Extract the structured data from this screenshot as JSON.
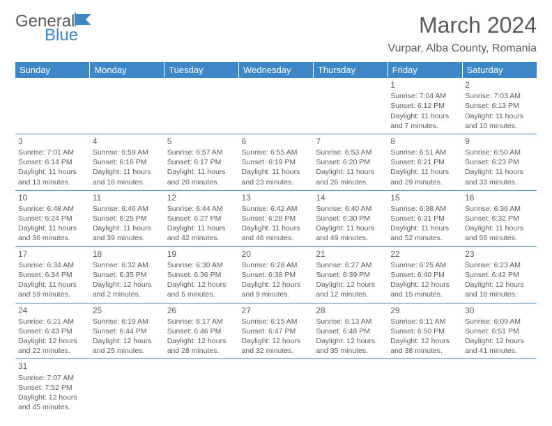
{
  "logo": {
    "word1": "General",
    "word2": "Blue"
  },
  "title": "March 2024",
  "location": "Vurpar, Alba County, Romania",
  "colors": {
    "header_bg": "#3d87c7",
    "text": "#5a5a5a",
    "border": "#3d87c7"
  },
  "day_headers": [
    "Sunday",
    "Monday",
    "Tuesday",
    "Wednesday",
    "Thursday",
    "Friday",
    "Saturday"
  ],
  "weeks": [
    [
      null,
      null,
      null,
      null,
      null,
      {
        "n": "1",
        "sr": "Sunrise: 7:04 AM",
        "ss": "Sunset: 6:12 PM",
        "dl1": "Daylight: 11 hours",
        "dl2": "and 7 minutes."
      },
      {
        "n": "2",
        "sr": "Sunrise: 7:03 AM",
        "ss": "Sunset: 6:13 PM",
        "dl1": "Daylight: 11 hours",
        "dl2": "and 10 minutes."
      }
    ],
    [
      {
        "n": "3",
        "sr": "Sunrise: 7:01 AM",
        "ss": "Sunset: 6:14 PM",
        "dl1": "Daylight: 11 hours",
        "dl2": "and 13 minutes."
      },
      {
        "n": "4",
        "sr": "Sunrise: 6:59 AM",
        "ss": "Sunset: 6:16 PM",
        "dl1": "Daylight: 11 hours",
        "dl2": "and 16 minutes."
      },
      {
        "n": "5",
        "sr": "Sunrise: 6:57 AM",
        "ss": "Sunset: 6:17 PM",
        "dl1": "Daylight: 11 hours",
        "dl2": "and 20 minutes."
      },
      {
        "n": "6",
        "sr": "Sunrise: 6:55 AM",
        "ss": "Sunset: 6:19 PM",
        "dl1": "Daylight: 11 hours",
        "dl2": "and 23 minutes."
      },
      {
        "n": "7",
        "sr": "Sunrise: 6:53 AM",
        "ss": "Sunset: 6:20 PM",
        "dl1": "Daylight: 11 hours",
        "dl2": "and 26 minutes."
      },
      {
        "n": "8",
        "sr": "Sunrise: 6:51 AM",
        "ss": "Sunset: 6:21 PM",
        "dl1": "Daylight: 11 hours",
        "dl2": "and 29 minutes."
      },
      {
        "n": "9",
        "sr": "Sunrise: 6:50 AM",
        "ss": "Sunset: 6:23 PM",
        "dl1": "Daylight: 11 hours",
        "dl2": "and 33 minutes."
      }
    ],
    [
      {
        "n": "10",
        "sr": "Sunrise: 6:48 AM",
        "ss": "Sunset: 6:24 PM",
        "dl1": "Daylight: 11 hours",
        "dl2": "and 36 minutes."
      },
      {
        "n": "11",
        "sr": "Sunrise: 6:46 AM",
        "ss": "Sunset: 6:25 PM",
        "dl1": "Daylight: 11 hours",
        "dl2": "and 39 minutes."
      },
      {
        "n": "12",
        "sr": "Sunrise: 6:44 AM",
        "ss": "Sunset: 6:27 PM",
        "dl1": "Daylight: 11 hours",
        "dl2": "and 42 minutes."
      },
      {
        "n": "13",
        "sr": "Sunrise: 6:42 AM",
        "ss": "Sunset: 6:28 PM",
        "dl1": "Daylight: 11 hours",
        "dl2": "and 46 minutes."
      },
      {
        "n": "14",
        "sr": "Sunrise: 6:40 AM",
        "ss": "Sunset: 6:30 PM",
        "dl1": "Daylight: 11 hours",
        "dl2": "and 49 minutes."
      },
      {
        "n": "15",
        "sr": "Sunrise: 6:38 AM",
        "ss": "Sunset: 6:31 PM",
        "dl1": "Daylight: 11 hours",
        "dl2": "and 52 minutes."
      },
      {
        "n": "16",
        "sr": "Sunrise: 6:36 AM",
        "ss": "Sunset: 6:32 PM",
        "dl1": "Daylight: 11 hours",
        "dl2": "and 56 minutes."
      }
    ],
    [
      {
        "n": "17",
        "sr": "Sunrise: 6:34 AM",
        "ss": "Sunset: 6:34 PM",
        "dl1": "Daylight: 11 hours",
        "dl2": "and 59 minutes."
      },
      {
        "n": "18",
        "sr": "Sunrise: 6:32 AM",
        "ss": "Sunset: 6:35 PM",
        "dl1": "Daylight: 12 hours",
        "dl2": "and 2 minutes."
      },
      {
        "n": "19",
        "sr": "Sunrise: 6:30 AM",
        "ss": "Sunset: 6:36 PM",
        "dl1": "Daylight: 12 hours",
        "dl2": "and 5 minutes."
      },
      {
        "n": "20",
        "sr": "Sunrise: 6:28 AM",
        "ss": "Sunset: 6:38 PM",
        "dl1": "Daylight: 12 hours",
        "dl2": "and 9 minutes."
      },
      {
        "n": "21",
        "sr": "Sunrise: 6:27 AM",
        "ss": "Sunset: 6:39 PM",
        "dl1": "Daylight: 12 hours",
        "dl2": "and 12 minutes."
      },
      {
        "n": "22",
        "sr": "Sunrise: 6:25 AM",
        "ss": "Sunset: 6:40 PM",
        "dl1": "Daylight: 12 hours",
        "dl2": "and 15 minutes."
      },
      {
        "n": "23",
        "sr": "Sunrise: 6:23 AM",
        "ss": "Sunset: 6:42 PM",
        "dl1": "Daylight: 12 hours",
        "dl2": "and 18 minutes."
      }
    ],
    [
      {
        "n": "24",
        "sr": "Sunrise: 6:21 AM",
        "ss": "Sunset: 6:43 PM",
        "dl1": "Daylight: 12 hours",
        "dl2": "and 22 minutes."
      },
      {
        "n": "25",
        "sr": "Sunrise: 6:19 AM",
        "ss": "Sunset: 6:44 PM",
        "dl1": "Daylight: 12 hours",
        "dl2": "and 25 minutes."
      },
      {
        "n": "26",
        "sr": "Sunrise: 6:17 AM",
        "ss": "Sunset: 6:46 PM",
        "dl1": "Daylight: 12 hours",
        "dl2": "and 28 minutes."
      },
      {
        "n": "27",
        "sr": "Sunrise: 6:15 AM",
        "ss": "Sunset: 6:47 PM",
        "dl1": "Daylight: 12 hours",
        "dl2": "and 32 minutes."
      },
      {
        "n": "28",
        "sr": "Sunrise: 6:13 AM",
        "ss": "Sunset: 6:48 PM",
        "dl1": "Daylight: 12 hours",
        "dl2": "and 35 minutes."
      },
      {
        "n": "29",
        "sr": "Sunrise: 6:11 AM",
        "ss": "Sunset: 6:50 PM",
        "dl1": "Daylight: 12 hours",
        "dl2": "and 38 minutes."
      },
      {
        "n": "30",
        "sr": "Sunrise: 6:09 AM",
        "ss": "Sunset: 6:51 PM",
        "dl1": "Daylight: 12 hours",
        "dl2": "and 41 minutes."
      }
    ],
    [
      {
        "n": "31",
        "sr": "Sunrise: 7:07 AM",
        "ss": "Sunset: 7:52 PM",
        "dl1": "Daylight: 12 hours",
        "dl2": "and 45 minutes."
      },
      null,
      null,
      null,
      null,
      null,
      null
    ]
  ]
}
